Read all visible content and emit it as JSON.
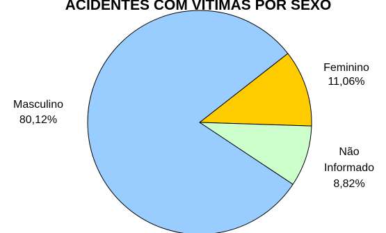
{
  "chart_data": {
    "type": "pie",
    "title": "ACIDENTES COM VÍTIMAS POR SEXO",
    "slices": [
      {
        "label": "Feminino",
        "value": 11.06,
        "display": "11,06%",
        "color": "#FFCC00"
      },
      {
        "label": "Não Informado",
        "label_lines": [
          "Não",
          "Informado"
        ],
        "value": 8.82,
        "display": "8,82%",
        "color": "#CCFFCC"
      },
      {
        "label": "Masculino",
        "value": 80.12,
        "display": "80,12%",
        "color": "#99CCFF"
      }
    ],
    "legend": "none",
    "data_labels": "outside"
  }
}
